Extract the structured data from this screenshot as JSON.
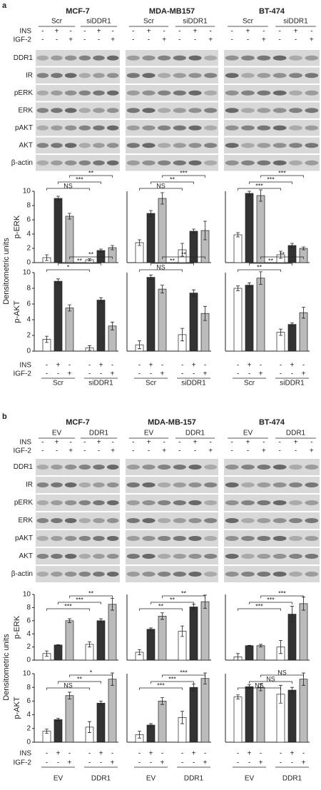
{
  "panels": [
    {
      "label": "a",
      "cell_lines": [
        "MCF-7",
        "MDA-MB157",
        "BT-474"
      ],
      "groups": [
        "Scr",
        "siDDR1"
      ],
      "treatments": [
        {
          "name": "INS",
          "signs": [
            "-",
            "+",
            "-",
            "-",
            "+",
            "-"
          ]
        },
        {
          "name": "IGF-2",
          "signs": [
            "-",
            "-",
            "+",
            "-",
            "-",
            "+"
          ]
        }
      ],
      "blots": [
        "DDR1",
        "IR",
        "pERK",
        "ERK",
        "pAKT",
        "AKT",
        "β-actin"
      ],
      "y_label": "Densitometric units",
      "chart_rows": [
        "p-ERK",
        "p-AKT"
      ]
    },
    {
      "label": "b",
      "cell_lines": [
        "MCF-7",
        "MDA-MB-157",
        "BT-474"
      ],
      "groups": [
        "EV",
        "DDR1"
      ],
      "treatments": [
        {
          "name": "INS",
          "signs": [
            "-",
            "+",
            "-",
            "-",
            "+",
            "-"
          ]
        },
        {
          "name": "IGF-2",
          "signs": [
            "-",
            "-",
            "+",
            "-",
            "-",
            "+"
          ]
        }
      ],
      "blots": [
        "DDR1",
        "IR",
        "pERK",
        "ERK",
        "pAKT",
        "AKT",
        "β-actin"
      ],
      "y_label": "Densitometric units",
      "chart_rows": [
        "p-ERK",
        "p-AKT"
      ]
    }
  ],
  "chart_data": [
    {
      "type": "bar",
      "ylim": [
        0,
        10
      ],
      "yticks": [
        0,
        2,
        4,
        6,
        8,
        10
      ],
      "values": [
        0.7,
        9,
        6.5,
        0.4,
        1.7,
        2.1
      ],
      "errors": [
        0.4,
        0.3,
        0.4,
        0.15,
        0.2,
        0.3
      ],
      "colors": [
        "#ffffff",
        "#333333",
        "#bbbbbb",
        "#ffffff",
        "#333333",
        "#bbbbbb"
      ],
      "significance": [
        "NS",
        "***",
        "**"
      ]
    },
    {
      "type": "bar",
      "ylim": [
        0,
        10
      ],
      "values": [
        2.8,
        6.9,
        9,
        1.8,
        4.4,
        4.5
      ],
      "errors": [
        0.4,
        0.4,
        0.8,
        0.9,
        0.3,
        1.3
      ],
      "colors": [
        "#ffffff",
        "#333333",
        "#bbbbbb",
        "#ffffff",
        "#333333",
        "#bbbbbb"
      ],
      "significance": [
        "NS",
        "**",
        "***"
      ]
    },
    {
      "type": "bar",
      "ylim": [
        0,
        10
      ],
      "values": [
        3.9,
        9.7,
        9.4,
        1.1,
        2.4,
        2.0
      ],
      "errors": [
        0.3,
        0.3,
        0.8,
        0.5,
        0.3,
        0.2
      ],
      "colors": [
        "#ffffff",
        "#333333",
        "#bbbbbb",
        "#ffffff",
        "#333333",
        "#bbbbbb"
      ],
      "significance": [
        "***",
        "***",
        "***"
      ]
    },
    {
      "type": "bar",
      "ylim": [
        0,
        10
      ],
      "yticks": [
        0,
        2,
        4,
        6,
        8,
        10
      ],
      "values": [
        1.5,
        8.9,
        5.5,
        0.4,
        6.5,
        3.2
      ],
      "errors": [
        0.4,
        0.3,
        0.4,
        0.3,
        0.3,
        0.5
      ],
      "colors": [
        "#ffffff",
        "#333333",
        "#bbbbbb",
        "#ffffff",
        "#333333",
        "#bbbbbb"
      ],
      "significance": [
        "*",
        "**",
        "**"
      ]
    },
    {
      "type": "bar",
      "ylim": [
        0,
        10
      ],
      "values": [
        0.8,
        9.4,
        7.9,
        2.1,
        7.4,
        4.8
      ],
      "errors": [
        0.5,
        0.3,
        0.5,
        0.8,
        0.4,
        0.9
      ],
      "colors": [
        "#ffffff",
        "#333333",
        "#bbbbbb",
        "#ffffff",
        "#333333",
        "#bbbbbb"
      ],
      "significance": [
        "NS",
        "**",
        "**"
      ]
    },
    {
      "type": "bar",
      "ylim": [
        0,
        10
      ],
      "values": [
        8.0,
        8.4,
        9.3,
        2.4,
        3.4,
        4.9
      ],
      "errors": [
        0.3,
        0.3,
        0.8,
        0.4,
        0.2,
        0.7
      ],
      "colors": [
        "#ffffff",
        "#333333",
        "#bbbbbb",
        "#ffffff",
        "#333333",
        "#bbbbbb"
      ],
      "significance": [
        "**",
        "**",
        "**"
      ]
    },
    {
      "type": "bar",
      "ylim": [
        0,
        10
      ],
      "yticks": [
        0,
        2,
        4,
        6,
        8,
        10
      ],
      "values": [
        1.0,
        2.3,
        6.0,
        2.4,
        6.0,
        8.5
      ],
      "errors": [
        0.4,
        0.05,
        0.3,
        0.4,
        0.3,
        0.9
      ],
      "colors": [
        "#ffffff",
        "#333333",
        "#bbbbbb",
        "#ffffff",
        "#333333",
        "#bbbbbb"
      ],
      "significance": [
        "***",
        "***",
        "**"
      ]
    },
    {
      "type": "bar",
      "ylim": [
        0,
        10
      ],
      "values": [
        1.2,
        4.7,
        6.7,
        4.4,
        8.1,
        8.9
      ],
      "errors": [
        0.4,
        0.2,
        0.5,
        0.8,
        0.4,
        1.0
      ],
      "colors": [
        "#ffffff",
        "#333333",
        "#bbbbbb",
        "#ffffff",
        "#333333",
        "#bbbbbb"
      ],
      "significance": [
        "**",
        "**",
        "**"
      ]
    },
    {
      "type": "bar",
      "ylim": [
        0,
        10
      ],
      "values": [
        0.5,
        2.2,
        2.2,
        2.0,
        7.0,
        8.6
      ],
      "errors": [
        0.5,
        0.05,
        0.2,
        1.0,
        1.2,
        1.0
      ],
      "colors": [
        "#ffffff",
        "#333333",
        "#bbbbbb",
        "#ffffff",
        "#333333",
        "#bbbbbb"
      ],
      "significance": [
        "***",
        "***",
        "***"
      ]
    },
    {
      "type": "bar",
      "ylim": [
        0,
        10
      ],
      "yticks": [
        0,
        2,
        4,
        6,
        8,
        10
      ],
      "values": [
        1.6,
        3.3,
        6.8,
        2.2,
        5.7,
        9.2
      ],
      "errors": [
        0.3,
        0.2,
        0.5,
        0.8,
        0.3,
        0.9
      ],
      "colors": [
        "#ffffff",
        "#333333",
        "#bbbbbb",
        "#ffffff",
        "#333333",
        "#bbbbbb"
      ],
      "significance": [
        "NS",
        "**",
        "*"
      ]
    },
    {
      "type": "bar",
      "ylim": [
        0,
        10
      ],
      "values": [
        1.1,
        2.5,
        6.0,
        3.6,
        8.0,
        9.3
      ],
      "errors": [
        0.5,
        0.2,
        0.5,
        0.9,
        0.5,
        0.8
      ],
      "colors": [
        "#ffffff",
        "#333333",
        "#bbbbbb",
        "#ffffff",
        "#333333",
        "#bbbbbb"
      ],
      "significance": [
        "***",
        "***",
        "***"
      ]
    },
    {
      "type": "bar",
      "ylim": [
        0,
        10
      ],
      "values": [
        6.6,
        8.1,
        8.0,
        7.0,
        7.6,
        9.2
      ],
      "errors": [
        0.3,
        0.3,
        0.5,
        1.3,
        0.4,
        0.9
      ],
      "colors": [
        "#ffffff",
        "#333333",
        "#bbbbbb",
        "#ffffff",
        "#333333",
        "#bbbbbb"
      ],
      "significance": [
        "NS",
        "NS",
        "NS"
      ]
    }
  ]
}
